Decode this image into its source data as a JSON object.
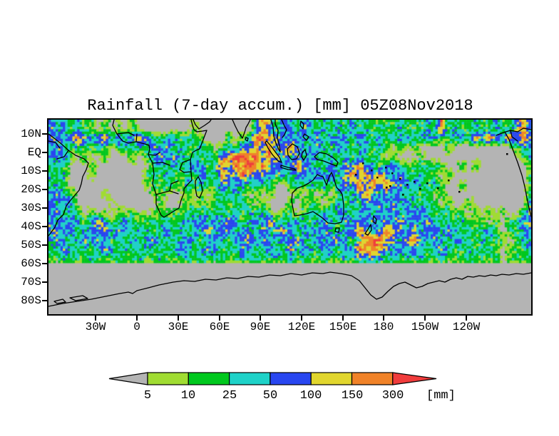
{
  "title": "Rainfall (7-day accum.) [mm] 05Z08Nov2018",
  "axes": {
    "y_ticks": [
      "10N",
      "EQ",
      "10S",
      "20S",
      "30S",
      "40S",
      "50S",
      "60S",
      "70S",
      "80S"
    ],
    "x_ticks": [
      "30W",
      "0",
      "30E",
      "60E",
      "90E",
      "120E",
      "150E",
      "180",
      "150W",
      "120W"
    ]
  },
  "colorbar": {
    "tick_labels": [
      "5",
      "10",
      "25",
      "50",
      "100",
      "150",
      "300"
    ],
    "unit": "[mm]",
    "segment_colors": [
      "#b4b4b4",
      "#a0dc32",
      "#00c81e",
      "#1ed2c8",
      "#2846f0",
      "#e1d62e",
      "#f08228",
      "#f03c3c"
    ]
  },
  "chart_data": {
    "type": "heatmap",
    "title": "Rainfall (7-day accum.) [mm] 05Z08Nov2018",
    "unit": "mm",
    "valid_time": "05Z08Nov2018",
    "accumulation": "7-day",
    "lon_range_deg_east": [
      -64,
      288
    ],
    "lat_range": [
      17.7,
      -87.3
    ],
    "data_cutoff_lat_south": -60,
    "levels_mm": [
      5,
      10,
      25,
      50,
      100,
      150,
      300
    ],
    "level_colors": [
      "#b4b4b4",
      "#a0dc32",
      "#00c81e",
      "#1ed2c8",
      "#2846f0",
      "#e1d62e",
      "#f08228",
      "#f03c3c"
    ],
    "grid_lon_start": -65,
    "grid_lon_step": 5,
    "grid_lat_start": 15,
    "grid_lat_step": -5,
    "grid_levels": [
      [
        "434",
        "2322",
        "020102",
        "000000",
        "001000",
        "00000",
        "364",
        "2432",
        "4323",
        "23242322",
        "22322232",
        "6",
        "232",
        "2322322",
        "4634"
      ],
      [
        "443",
        "4643463434",
        "6432",
        "342322",
        "00",
        "02023",
        "6654",
        "4343",
        "342434",
        "2432423",
        "3423432",
        "234264",
        "6446",
        "4644"
      ],
      [
        "343",
        "232232",
        "0",
        "23232",
        "434232",
        "2320",
        "23243",
        "6464",
        "4643",
        "343243",
        "234232",
        "020200",
        "00200",
        "00000",
        "0023",
        "33"
      ],
      [
        "4342",
        "020020",
        "00202",
        "343432",
        "3232",
        "466766464",
        "4343",
        "43232",
        "32322",
        "20200",
        "02000000",
        "0000000",
        "0233"
      ],
      [
        "232",
        "000200000000",
        "23232",
        "34323",
        "646676644",
        "34643",
        "23434",
        "46432",
        "34322",
        "23220",
        "02020",
        "00000022"
      ],
      [
        "323",
        "00010000000",
        "232322",
        "32432",
        "644644",
        "43433",
        "34343",
        "43464",
        "64643",
        "43232",
        "20200",
        "000000000",
        "22"
      ],
      [
        "232",
        "00000000000",
        "12232",
        "23232",
        "24343",
        "32320",
        "02323",
        "23234",
        "36464",
        "64434",
        "32320",
        "02000000000",
        "23"
      ],
      [
        "3432",
        "0000100000",
        "01210",
        "02020",
        "23232",
        "02020",
        "00202",
        "02032",
        "34643",
        "43423",
        "23020",
        "00000000000",
        "33"
      ],
      [
        "4343",
        "0000010000",
        "00100",
        "12121",
        "23223",
        "20200",
        "02022",
        "20232",
        "32434",
        "34343",
        "23202",
        "002000",
        "00000",
        "43"
      ],
      [
        "3423",
        "202010",
        "21201",
        "12122",
        "23232",
        "32323",
        "23202",
        "20232",
        "32432",
        "34343",
        "43434",
        "32322",
        "20202",
        "02003",
        "44"
      ],
      [
        "4343",
        "32363",
        "23432",
        "23232",
        "34343",
        "43532",
        "34363",
        "23432",
        "34324",
        "34343",
        "43534",
        "34323",
        "23222",
        "02023",
        "443"
      ],
      [
        "4434",
        "23435",
        "34323",
        "32342",
        "32435",
        "34434",
        "32434",
        "53234",
        "34323",
        "46434",
        "65434",
        "34434",
        "32323",
        "42022",
        "344"
      ],
      [
        "3432",
        "34343",
        "23232",
        "34232",
        "34323",
        "43243",
        "53432",
        "43532",
        "43453",
        "24676",
        "54346",
        "43432",
        "43223",
        "22202",
        "334"
      ],
      [
        "2343",
        "23234",
        "32323",
        "32323",
        "43234",
        "32324",
        "32343",
        "25343",
        "24324",
        "36665",
        "43434",
        "32343",
        "22322",
        "32022",
        "243"
      ],
      [
        "2232",
        "22322",
        "23223",
        "22322",
        "23232",
        "23223",
        "23223",
        "23232",
        "23223",
        "24343",
        "23232",
        "32232",
        "22322",
        "22022",
        "222"
      ],
      [
        "0"
      ],
      [
        "0"
      ],
      [
        "0"
      ],
      [
        "0"
      ],
      [
        "0"
      ]
    ]
  }
}
